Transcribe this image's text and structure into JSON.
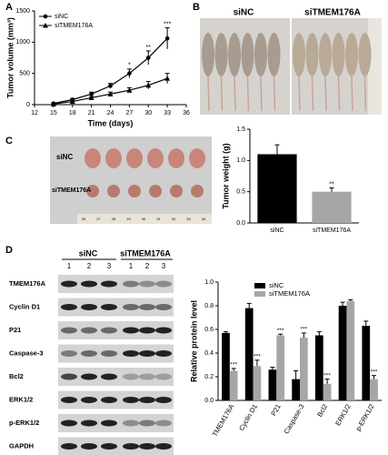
{
  "panel_labels": [
    "A",
    "B",
    "C",
    "D"
  ],
  "chart_data": [
    {
      "type": "line",
      "ylabel": "Tumor volume (mm³)",
      "xlabel": "Time (days)",
      "x": [
        15,
        18,
        21,
        24,
        27,
        30,
        33
      ],
      "series": [
        {
          "name": "siNC",
          "color": "#000000",
          "marker": "circle",
          "values": [
            20,
            80,
            170,
            300,
            500,
            750,
            1060
          ],
          "errors": [
            10,
            20,
            30,
            40,
            70,
            110,
            170
          ],
          "significance": [
            null,
            null,
            null,
            null,
            "*",
            "**",
            "***"
          ]
        },
        {
          "name": "siTMEM176A",
          "color": "#000000",
          "marker": "triangle",
          "values": [
            10,
            50,
            110,
            170,
            230,
            310,
            420
          ],
          "errors": [
            8,
            15,
            20,
            30,
            40,
            60,
            80
          ]
        }
      ],
      "xlim": [
        12,
        36
      ],
      "xticks": [
        12,
        15,
        18,
        21,
        24,
        27,
        30,
        33,
        36
      ],
      "ylim": [
        0,
        1500
      ],
      "yticks": [
        0,
        500,
        1000,
        1500
      ],
      "legend": "upper left"
    },
    {
      "type": "bar",
      "ylabel": "Tumor weight (g)",
      "categories": [
        "siNC",
        "siTMEM176A"
      ],
      "values": [
        1.1,
        0.5
      ],
      "errors": [
        0.15,
        0.06
      ],
      "colors": [
        "#000000",
        "#a6a6a6"
      ],
      "significance": [
        null,
        "**"
      ],
      "ylim": [
        0,
        1.5
      ],
      "yticks": [
        {
          "value": 0,
          "label": "0.0"
        },
        0.5,
        {
          "value": 1,
          "label": "1.0"
        },
        1.5
      ]
    },
    {
      "type": "grouped_bar",
      "ylabel": "Relative protein level",
      "categories": [
        "TMEM176A",
        "Cyclin D1",
        "P21",
        "Caspase-3",
        "Bcl2",
        "ERK1/2",
        "p-ERK1/2"
      ],
      "series": [
        {
          "name": "siNC",
          "color": "#000000",
          "values": [
            0.57,
            0.78,
            0.26,
            0.18,
            0.55,
            0.8,
            0.63
          ],
          "errors": [
            0.01,
            0.04,
            0.02,
            0.07,
            0.03,
            0.03,
            0.04
          ]
        },
        {
          "name": "siTMEM176A",
          "color": "#a6a6a6",
          "values": [
            0.25,
            0.29,
            0.55,
            0.53,
            0.14,
            0.84,
            0.18
          ],
          "errors": [
            0.02,
            0.05,
            0.01,
            0.04,
            0.04,
            0.01,
            0.03
          ],
          "significance": [
            "***",
            "***",
            "***",
            "***",
            "***",
            null,
            "***"
          ]
        }
      ],
      "ylim": [
        0,
        1
      ],
      "yticks": [
        {
          "value": 0,
          "label": "0.0"
        },
        0.2,
        0.4,
        0.6,
        0.8,
        {
          "value": 1,
          "label": "1.0"
        }
      ],
      "legend": "upper center"
    }
  ],
  "photo_b": {
    "labels": [
      "siNC",
      "siTMEM176A"
    ]
  },
  "photo_c": {
    "labels": [
      "siNC",
      "siTMEM176A"
    ],
    "ruler": [
      "26",
      "27",
      "28",
      "29",
      "30",
      "31",
      "32",
      "33",
      "34"
    ]
  },
  "blot": {
    "groups": [
      "siNC",
      "siTMEM176A"
    ],
    "lanes": [
      "1",
      "2",
      "3",
      "1",
      "2",
      "3"
    ],
    "proteins": [
      "TMEM176A",
      "Cyclin D1",
      "P21",
      "Caspase-3",
      "Bcl2",
      "ERK1/2",
      "p-ERK1/2",
      "GAPDH"
    ]
  }
}
